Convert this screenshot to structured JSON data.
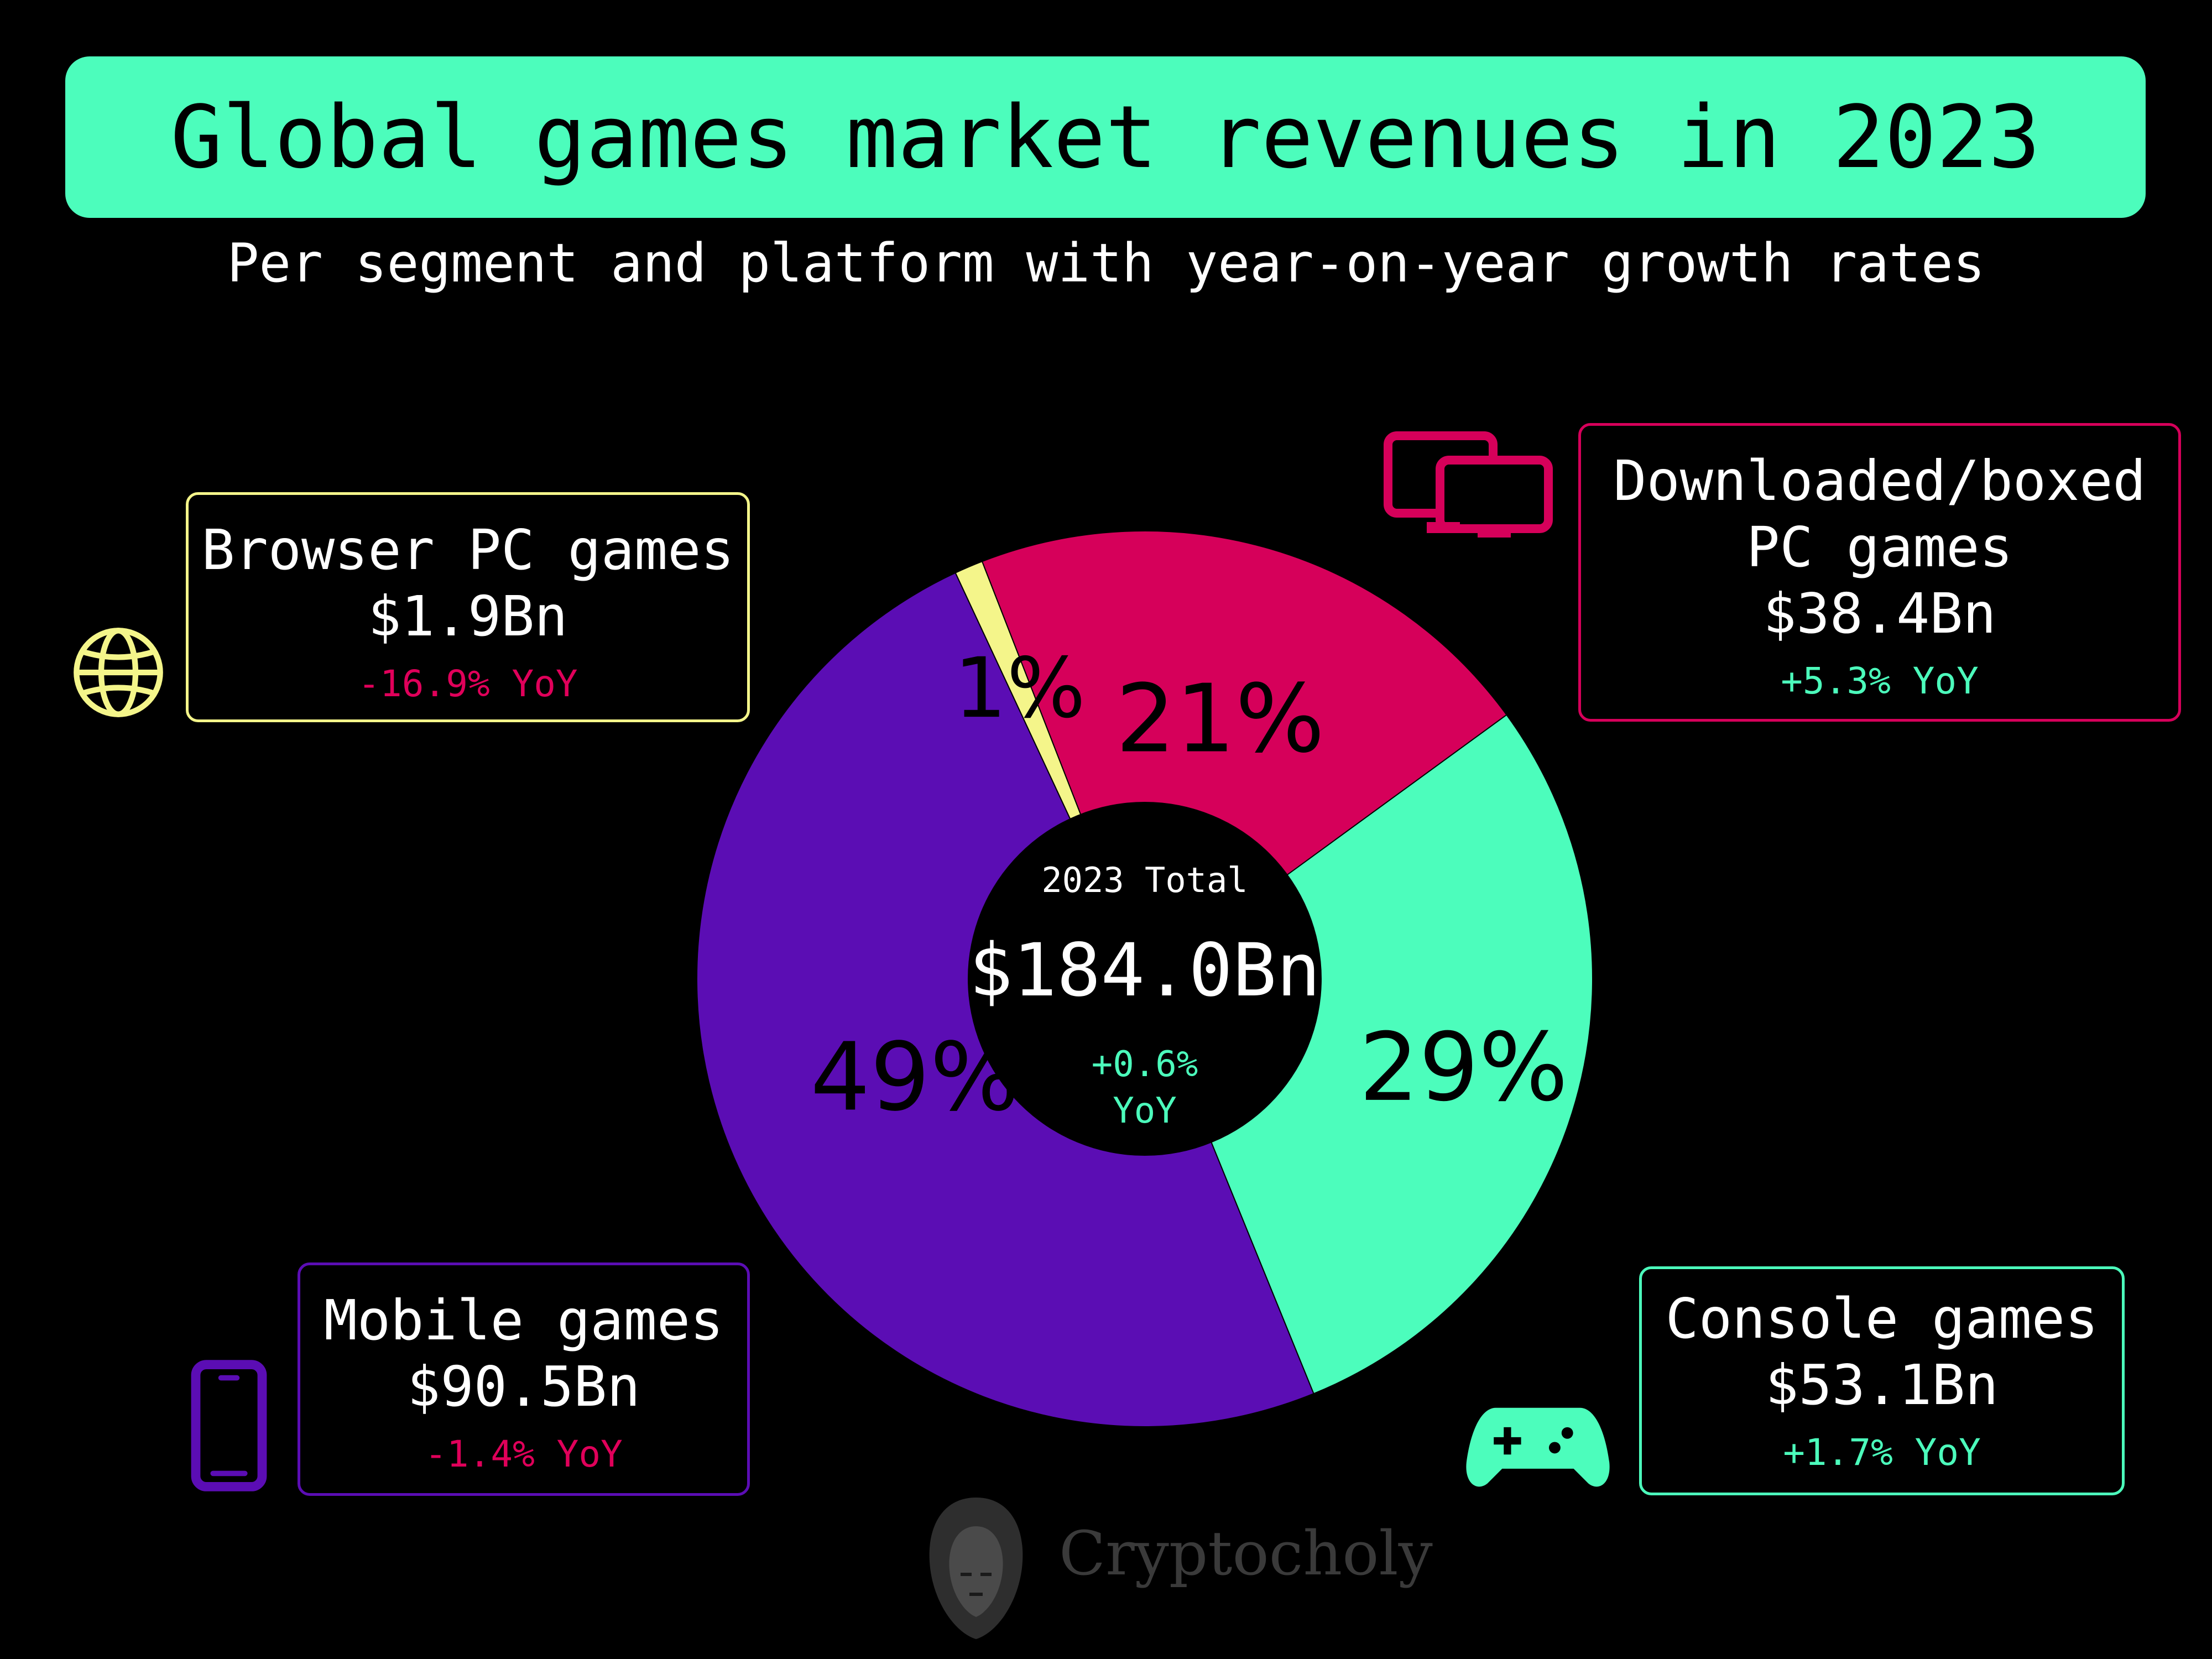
{
  "title": "Global games market revenues in 2023",
  "subtitle": "Per segment and platform with year-on-year growth rates",
  "colors": {
    "accent": "#4cfdbc",
    "browser": "#f4f58a",
    "download": "#d6005a",
    "console": "#4cfdbc",
    "mobile": "#5b0db4",
    "negative": "#e0005a",
    "positive": "#4cfdbc"
  },
  "center": {
    "label": "2023 Total",
    "total": "$184.0Bn",
    "yoy_value": "+0.6%",
    "yoy_unit": "YoY"
  },
  "segments": {
    "browser": {
      "name": "Browser PC games",
      "value": "$1.9Bn",
      "yoy": "-16.9% YoY",
      "icon": "globe-icon"
    },
    "download": {
      "name_line1": "Downloaded/boxed",
      "name_line2": "PC games",
      "value": "$38.4Bn",
      "yoy": "+5.3% YoY",
      "icon": "dual-monitor-icon"
    },
    "mobile": {
      "name": "Mobile games",
      "value": "$90.5Bn",
      "yoy": "-1.4% YoY",
      "icon": "smartphone-icon"
    },
    "console": {
      "name": "Console games",
      "value": "$53.1Bn",
      "yoy": "+1.7% YoY",
      "icon": "gamepad-icon"
    }
  },
  "watermark": "Cryptocholy",
  "chart_data": {
    "type": "pie",
    "title": "Global games market revenues in 2023",
    "subtitle": "Per segment and platform with year-on-year growth rates",
    "total": 184.0,
    "unit": "$Bn",
    "slices": [
      {
        "label": "Browser PC games",
        "value": 1.9,
        "percent_label": "1%",
        "color": "#f4f58a",
        "yoy": -16.9
      },
      {
        "label": "Downloaded/boxed PC games",
        "value": 38.4,
        "percent_label": "21%",
        "color": "#d6005a",
        "yoy": 5.3
      },
      {
        "label": "Console games",
        "value": 53.1,
        "percent_label": "29%",
        "color": "#4cfdbc",
        "yoy": 1.7
      },
      {
        "label": "Mobile games",
        "value": 90.5,
        "percent_label": "49%",
        "color": "#5b0db4",
        "yoy": -1.4
      }
    ],
    "start_angle_deg": -25,
    "direction": "clockwise",
    "donut": true
  }
}
